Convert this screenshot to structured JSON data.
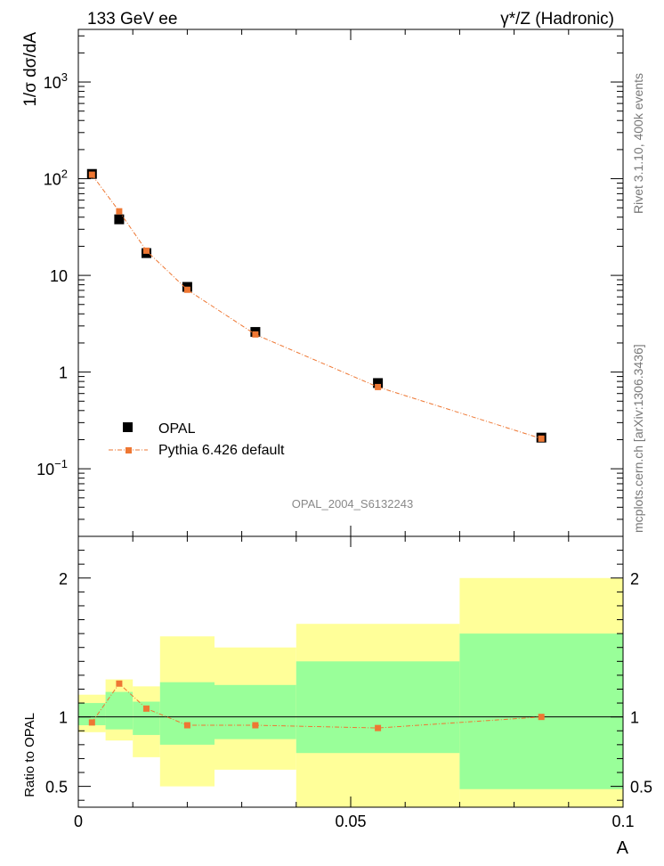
{
  "header": {
    "left_label": "133 GeV ee",
    "right_label": "γ*/Z (Hadronic)"
  },
  "side_notes": {
    "rivet": "Rivet 3.1.10,  400k events",
    "mcplots": "mcplots.cern.ch [arXiv:1306.3436]"
  },
  "watermark": "OPAL_2004_S6132243",
  "colors": {
    "data": "#000000",
    "mc": "#ee7733",
    "band_inner": "#99ff99",
    "band_outer": "#ffff99"
  },
  "chart_data": [
    {
      "type": "scatter",
      "ylabel": "1/σ dσ/dA",
      "y_scale": "log",
      "xlim": [
        0,
        0.1
      ],
      "ylim": [
        0.02,
        3500
      ],
      "y_ticks": [
        {
          "value": 0.1,
          "label_base": "10",
          "label_exp": "−1"
        },
        {
          "value": 1,
          "label_base": "1",
          "label_exp": ""
        },
        {
          "value": 10,
          "label_base": "10",
          "label_exp": ""
        },
        {
          "value": 100,
          "label_base": "10",
          "label_exp": "2"
        },
        {
          "value": 1000,
          "label_base": "10",
          "label_exp": "3"
        }
      ],
      "legend_position": "bottom-left",
      "legend": {
        "data_label": "OPAL",
        "mc_label": "Pythia 6.426 default"
      },
      "series": [
        {
          "name": "OPAL",
          "x": [
            0.0025,
            0.0075,
            0.0125,
            0.02,
            0.0325,
            0.055,
            0.085
          ],
          "y": [
            112,
            38,
            17,
            7.6,
            2.6,
            0.77,
            0.21
          ]
        },
        {
          "name": "Pythia 6.426 default",
          "x": [
            0.0025,
            0.0075,
            0.0125,
            0.02,
            0.0325,
            0.055,
            0.085
          ],
          "y": [
            110,
            46,
            18,
            7.1,
            2.45,
            0.7,
            0.205
          ]
        }
      ]
    },
    {
      "type": "scatter",
      "xlabel": "A",
      "ylabel": "Ratio to OPAL",
      "xlim": [
        0,
        0.1
      ],
      "ylim": [
        0.35,
        2.3
      ],
      "x_ticks": [
        {
          "value": 0,
          "label": "0"
        },
        {
          "value": 0.05,
          "label": "0.05"
        },
        {
          "value": 0.1,
          "label": "0.1"
        }
      ],
      "y_ticks": [
        {
          "value": 0.5,
          "label": "0.5"
        },
        {
          "value": 1,
          "label": "1"
        },
        {
          "value": 2,
          "label": "2"
        }
      ],
      "bands": [
        {
          "x0": 0.0,
          "x1": 0.005,
          "inner": [
            0.94,
            1.1
          ],
          "outer": [
            0.89,
            1.16
          ]
        },
        {
          "x0": 0.005,
          "x1": 0.01,
          "inner": [
            0.91,
            1.18
          ],
          "outer": [
            0.83,
            1.27
          ]
        },
        {
          "x0": 0.01,
          "x1": 0.015,
          "inner": [
            0.87,
            1.11
          ],
          "outer": [
            0.71,
            1.22
          ]
        },
        {
          "x0": 0.015,
          "x1": 0.025,
          "inner": [
            0.8,
            1.25
          ],
          "outer": [
            0.5,
            1.58
          ]
        },
        {
          "x0": 0.025,
          "x1": 0.04,
          "inner": [
            0.84,
            1.23
          ],
          "outer": [
            0.62,
            1.5
          ]
        },
        {
          "x0": 0.04,
          "x1": 0.07,
          "inner": [
            0.74,
            1.4
          ],
          "outer": [
            0.35,
            1.67
          ]
        },
        {
          "x0": 0.07,
          "x1": 0.1,
          "inner": [
            0.48,
            1.6
          ],
          "outer": [
            0.35,
            2.0
          ]
        }
      ],
      "series": [
        {
          "name": "Pythia 6.426 default",
          "x": [
            0.0025,
            0.0075,
            0.0125,
            0.02,
            0.0325,
            0.055,
            0.085
          ],
          "y": [
            0.96,
            1.24,
            1.06,
            0.94,
            0.94,
            0.92,
            1.0
          ]
        }
      ]
    }
  ]
}
